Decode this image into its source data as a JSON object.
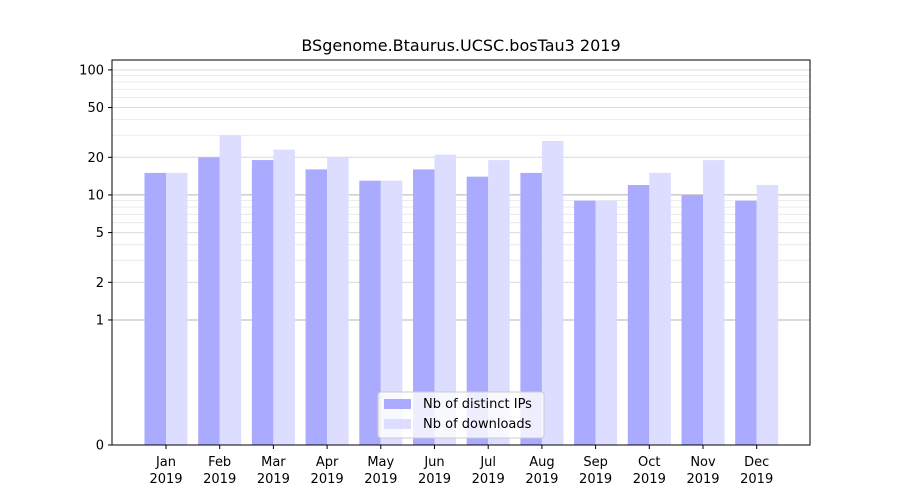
{
  "chart_data": {
    "type": "bar",
    "title": "BSgenome.Btaurus.UCSC.bosTau3 2019",
    "xlabel": "",
    "ylabel": "",
    "y_scale": "symlog",
    "y_ticks": [
      0,
      1,
      2,
      5,
      10,
      20,
      50,
      100
    ],
    "ylim": [
      0,
      120
    ],
    "grid": true,
    "legend_position": "bottom-center",
    "categories": [
      {
        "month": "Jan",
        "year": "2019"
      },
      {
        "month": "Feb",
        "year": "2019"
      },
      {
        "month": "Mar",
        "year": "2019"
      },
      {
        "month": "Apr",
        "year": "2019"
      },
      {
        "month": "May",
        "year": "2019"
      },
      {
        "month": "Jun",
        "year": "2019"
      },
      {
        "month": "Jul",
        "year": "2019"
      },
      {
        "month": "Aug",
        "year": "2019"
      },
      {
        "month": "Sep",
        "year": "2019"
      },
      {
        "month": "Oct",
        "year": "2019"
      },
      {
        "month": "Nov",
        "year": "2019"
      },
      {
        "month": "Dec",
        "year": "2019"
      }
    ],
    "series": [
      {
        "name": "Nb of distinct IPs",
        "color": "#aaaaff",
        "values": [
          15,
          20,
          19,
          16,
          13,
          16,
          14,
          15,
          9,
          12,
          10,
          9
        ]
      },
      {
        "name": "Nb of downloads",
        "color": "#ddddff",
        "values": [
          15,
          30,
          23,
          20,
          13,
          21,
          19,
          27,
          9,
          15,
          19,
          12
        ]
      }
    ]
  }
}
